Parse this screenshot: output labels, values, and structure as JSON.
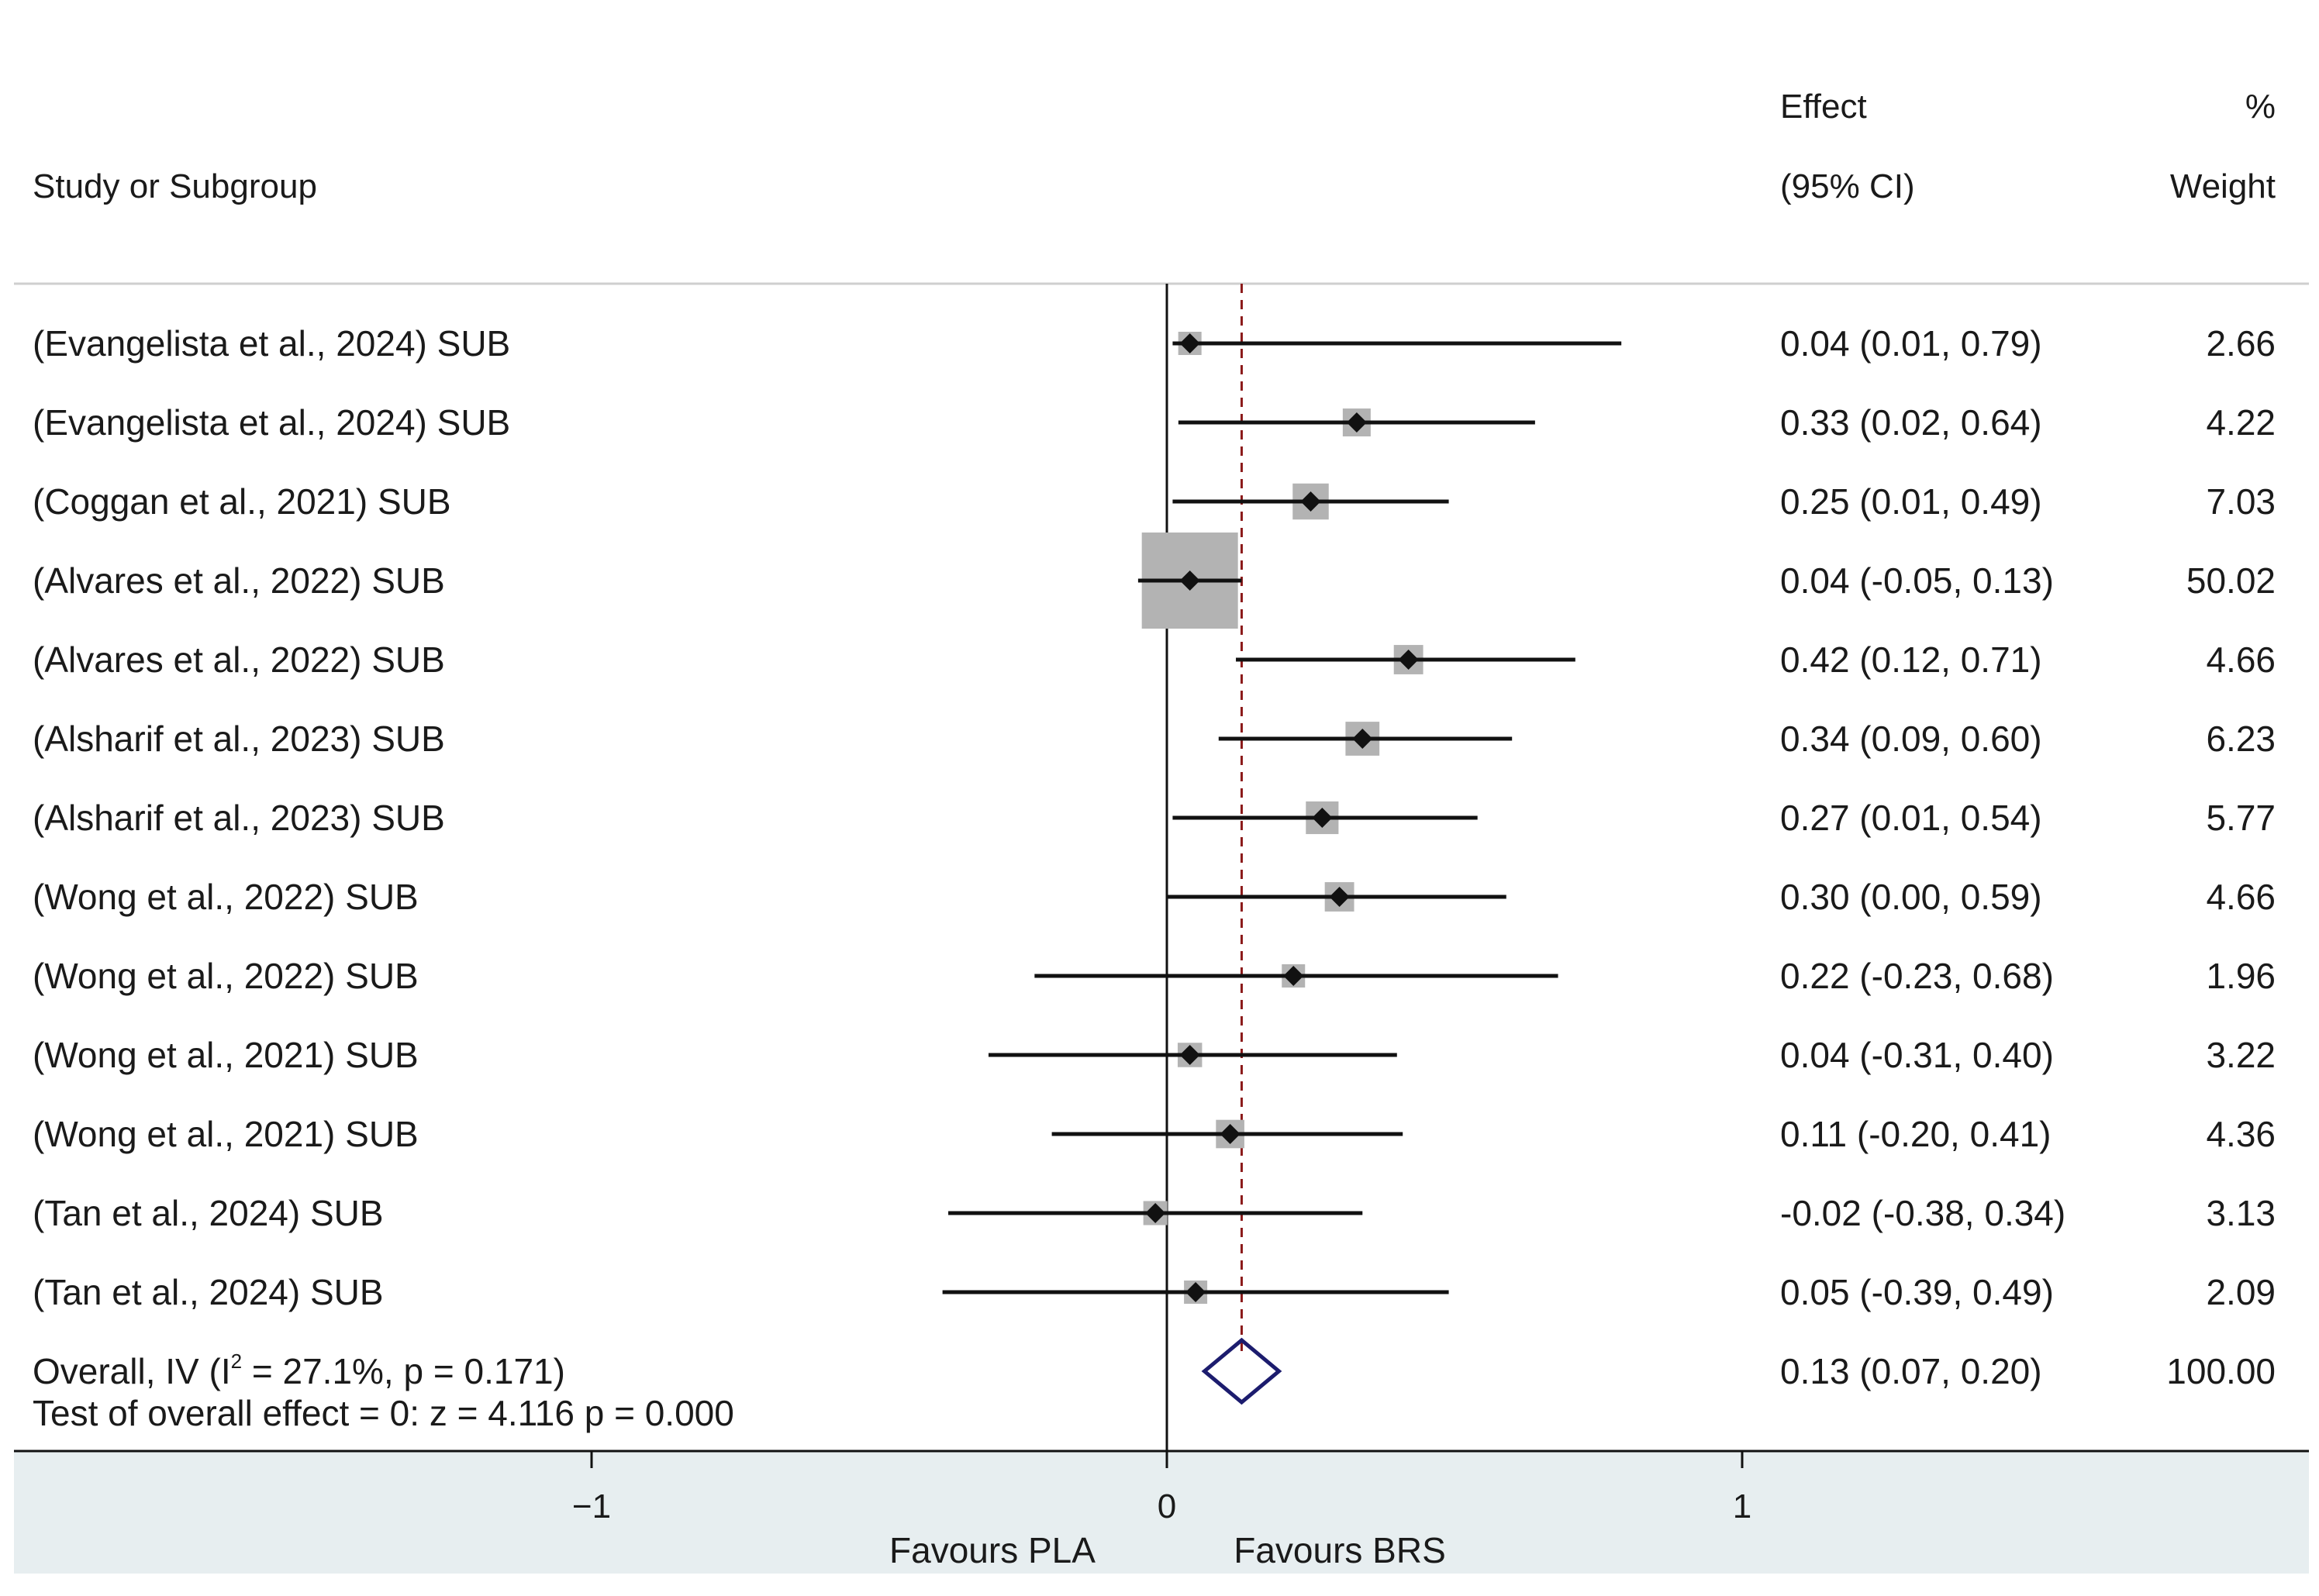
{
  "header": {
    "study_col": "Study or Subgroup",
    "effect_line1": "Effect",
    "effect_line2": "(95% CI)",
    "weight_line1": "%",
    "weight_line2": "Weight"
  },
  "chart_data": {
    "type": "forest",
    "x_ticks": [
      {
        "value": -1,
        "label": "−1"
      },
      {
        "value": 0,
        "label": "0"
      },
      {
        "value": 1,
        "label": "1"
      }
    ],
    "null_line": 0,
    "xlabel_left": "Favours PLA",
    "xlabel_right": "Favours BRS",
    "studies": [
      {
        "label": "(Evangelista et al., 2024) SUB",
        "effect": 0.04,
        "lower": 0.01,
        "upper": 0.79,
        "weight": 2.66,
        "effect_text": "0.04 (0.01, 0.79)",
        "weight_text": "2.66"
      },
      {
        "label": "(Evangelista et al., 2024) SUB",
        "effect": 0.33,
        "lower": 0.02,
        "upper": 0.64,
        "weight": 4.22,
        "effect_text": "0.33 (0.02, 0.64)",
        "weight_text": "4.22"
      },
      {
        "label": "(Coggan et al., 2021) SUB",
        "effect": 0.25,
        "lower": 0.01,
        "upper": 0.49,
        "weight": 7.03,
        "effect_text": "0.25 (0.01, 0.49)",
        "weight_text": "7.03"
      },
      {
        "label": "(Alvares et al., 2022) SUB",
        "effect": 0.04,
        "lower": -0.05,
        "upper": 0.13,
        "weight": 50.02,
        "effect_text": "0.04 (-0.05, 0.13)",
        "weight_text": "50.02"
      },
      {
        "label": "(Alvares et al., 2022) SUB",
        "effect": 0.42,
        "lower": 0.12,
        "upper": 0.71,
        "weight": 4.66,
        "effect_text": "0.42 (0.12, 0.71)",
        "weight_text": "4.66"
      },
      {
        "label": "(Alsharif et al., 2023) SUB",
        "effect": 0.34,
        "lower": 0.09,
        "upper": 0.6,
        "weight": 6.23,
        "effect_text": "0.34 (0.09, 0.60)",
        "weight_text": "6.23"
      },
      {
        "label": "(Alsharif et al., 2023) SUB",
        "effect": 0.27,
        "lower": 0.01,
        "upper": 0.54,
        "weight": 5.77,
        "effect_text": "0.27 (0.01, 0.54)",
        "weight_text": "5.77"
      },
      {
        "label": "(Wong et al., 2022) SUB",
        "effect": 0.3,
        "lower": 0.0,
        "upper": 0.59,
        "weight": 4.66,
        "effect_text": "0.30 (0.00, 0.59)",
        "weight_text": "4.66"
      },
      {
        "label": "(Wong et al., 2022) SUB",
        "effect": 0.22,
        "lower": -0.23,
        "upper": 0.68,
        "weight": 1.96,
        "effect_text": "0.22 (-0.23, 0.68)",
        "weight_text": "1.96"
      },
      {
        "label": "(Wong et al., 2021) SUB",
        "effect": 0.04,
        "lower": -0.31,
        "upper": 0.4,
        "weight": 3.22,
        "effect_text": "0.04 (-0.31, 0.40)",
        "weight_text": "3.22"
      },
      {
        "label": "(Wong et al., 2021) SUB",
        "effect": 0.11,
        "lower": -0.2,
        "upper": 0.41,
        "weight": 4.36,
        "effect_text": "0.11 (-0.20, 0.41)",
        "weight_text": "4.36"
      },
      {
        "label": "(Tan et al., 2024) SUB",
        "effect": -0.02,
        "lower": -0.38,
        "upper": 0.34,
        "weight": 3.13,
        "effect_text": "-0.02 (-0.38, 0.34)",
        "weight_text": "3.13"
      },
      {
        "label": "(Tan et al., 2024) SUB",
        "effect": 0.05,
        "lower": -0.39,
        "upper": 0.49,
        "weight": 2.09,
        "effect_text": "0.05 (-0.39, 0.49)",
        "weight_text": "2.09"
      }
    ],
    "overall": {
      "label_prefix": "Overall, IV (I",
      "label_sup": "2",
      "label_suffix": " = 27.1%, p = 0.171)",
      "test_text": "Test of overall effect = 0:  z =   4.116  p = 0.000",
      "effect": 0.13,
      "lower": 0.07,
      "upper": 0.2,
      "effect_text": "0.13 (0.07, 0.20)",
      "weight_text": "100.00"
    }
  },
  "colors": {
    "box": "#b3b3b3",
    "marker": "#111111",
    "ci_line": "#111111",
    "null_line": "#111111",
    "overall_line": "#8b1a1a",
    "diamond": "#1c1c6e",
    "axis_band": "#e7eef0",
    "separator": "#cfcfcf"
  }
}
